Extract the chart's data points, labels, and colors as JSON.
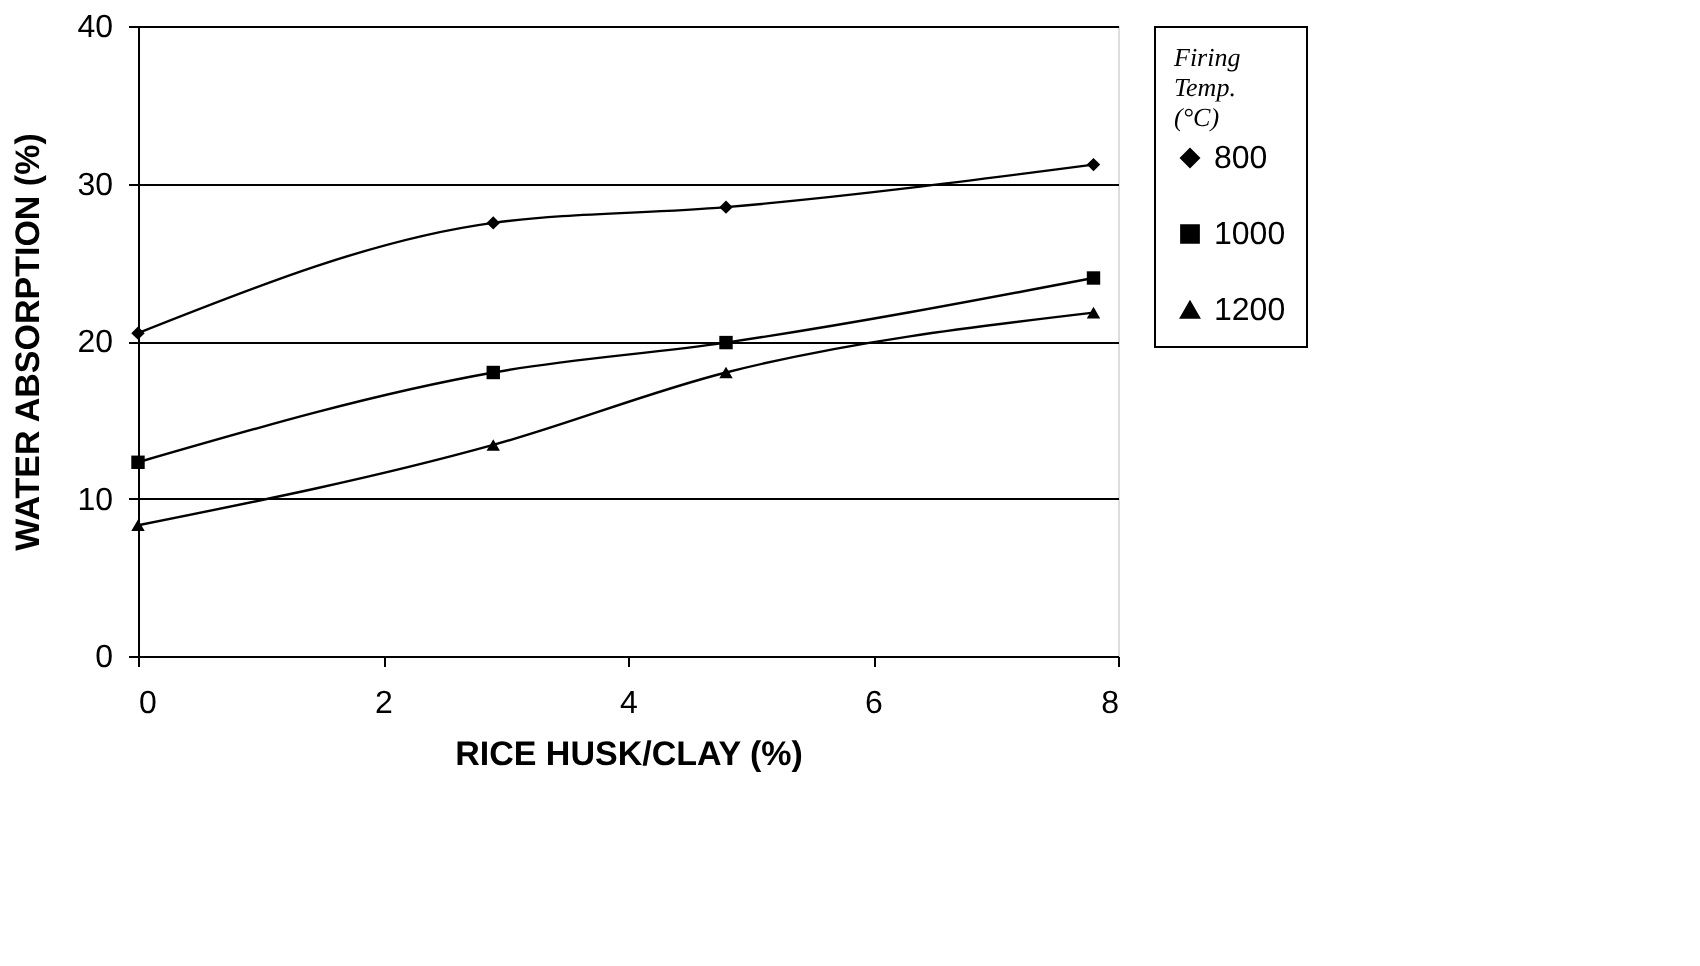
{
  "chart_data": {
    "type": "line",
    "xlabel": "RICE HUSK/CLAY (%)",
    "ylabel": "WATER ABSORPTION (%)",
    "legend_title": "Firing Temp. (°C)",
    "x": [
      0,
      2.9,
      4.8,
      7.8
    ],
    "xlim": [
      0,
      8
    ],
    "xticks": [
      0,
      2,
      4,
      6,
      8
    ],
    "ylim": [
      0,
      40
    ],
    "yticks": [
      0,
      10,
      20,
      30,
      40
    ],
    "grid": "y",
    "legend": "right",
    "line_style": "solid",
    "series": [
      {
        "name": "800",
        "color": "#000000",
        "marker": "diamond",
        "values": [
          20.5,
          27.5,
          28.5,
          31.2
        ]
      },
      {
        "name": "1000",
        "color": "#000000",
        "marker": "square",
        "values": [
          12.3,
          18,
          19.9,
          24
        ]
      },
      {
        "name": "1200",
        "color": "#000000",
        "marker": "triangle",
        "values": [
          8.3,
          13.4,
          18,
          21.8
        ]
      }
    ]
  }
}
